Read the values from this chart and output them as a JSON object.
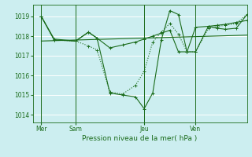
{
  "background_color": "#cceef0",
  "grid_color": "#ffffff",
  "line_color": "#1a6b1a",
  "title": "Pression niveau de la mer( hPa )",
  "ylabel_ticks": [
    1014,
    1015,
    1016,
    1017,
    1018,
    1019
  ],
  "ylim": [
    1013.6,
    1019.6
  ],
  "xlim": [
    0.0,
    1.0
  ],
  "x_ticks": [
    0.04,
    0.2,
    0.52,
    0.76
  ],
  "x_tick_labels": [
    "Mer",
    "Sam",
    "Jeu",
    "Ven"
  ],
  "vlines": [
    0.04,
    0.2,
    0.52,
    0.76
  ],
  "line1_x": [
    0.04,
    0.52,
    1.0
  ],
  "line1_y": [
    1017.9,
    1017.7,
    1018.05
  ],
  "line2_x": [
    0.04,
    0.52,
    1.0
  ],
  "line2_y": [
    1019.0,
    1018.2,
    1019.1
  ],
  "line_trend_x": [
    0.04,
    1.0
  ],
  "line_trend_y": [
    1017.75,
    1018.05
  ],
  "line_smooth_x": [
    0.04,
    0.1,
    0.2,
    0.26,
    0.3,
    0.36,
    0.42,
    0.48,
    0.52,
    0.56,
    0.6,
    0.64,
    0.68,
    0.72,
    0.76,
    0.82,
    0.86,
    0.9,
    0.95,
    1.0
  ],
  "line_smooth_y": [
    1019.0,
    1017.85,
    1017.75,
    1018.2,
    1017.9,
    1017.4,
    1017.55,
    1017.7,
    1017.85,
    1018.0,
    1018.15,
    1018.3,
    1017.2,
    1017.2,
    1018.45,
    1018.5,
    1018.55,
    1018.6,
    1018.7,
    1018.8
  ],
  "line_jagged_x": [
    0.04,
    0.1,
    0.2,
    0.26,
    0.3,
    0.36,
    0.42,
    0.48,
    0.52,
    0.56,
    0.6,
    0.64,
    0.68,
    0.72,
    0.76,
    0.82,
    0.86,
    0.9,
    0.95,
    1.0
  ],
  "line_jagged_y": [
    1019.0,
    1017.8,
    1017.75,
    1018.2,
    1017.9,
    1015.1,
    1015.0,
    1014.9,
    1014.3,
    1015.1,
    1017.8,
    1019.3,
    1019.1,
    1017.2,
    1017.2,
    1018.5,
    1018.4,
    1018.35,
    1018.4,
    1019.1
  ],
  "line_dotted_x": [
    0.04,
    0.1,
    0.2,
    0.26,
    0.3,
    0.36,
    0.42,
    0.48,
    0.52,
    0.56,
    0.6,
    0.64,
    0.68,
    0.72,
    0.76,
    0.82,
    0.86,
    0.9,
    0.95,
    1.0
  ],
  "line_dotted_y": [
    1019.0,
    1017.8,
    1017.75,
    1017.5,
    1017.3,
    1015.15,
    1015.05,
    1015.5,
    1016.2,
    1017.7,
    1018.2,
    1018.65,
    1018.1,
    1017.2,
    1017.2,
    1018.4,
    1018.5,
    1018.55,
    1018.65,
    1019.1
  ]
}
